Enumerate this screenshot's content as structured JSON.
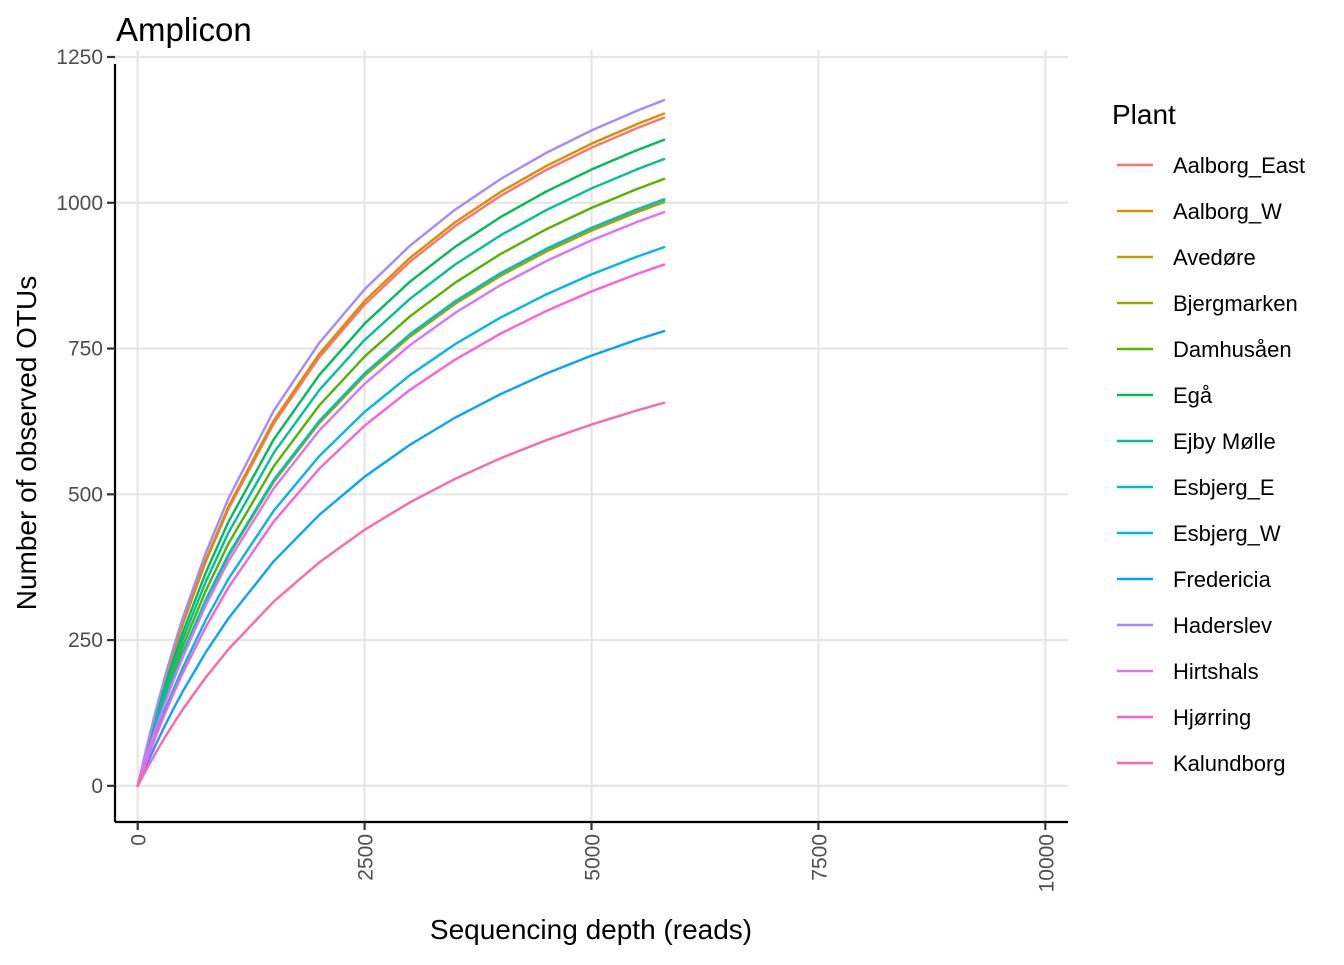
{
  "chart_data": {
    "type": "line",
    "title": "Amplicon",
    "xlabel": "Sequencing depth (reads)",
    "ylabel": "Number of observed OTUs",
    "xlim": [
      -250,
      10250
    ],
    "ylim": [
      -62,
      1262
    ],
    "x_ticks": [
      "0",
      "2500",
      "5000",
      "7500",
      "10000"
    ],
    "y_ticks": [
      "0",
      "250",
      "500",
      "750",
      "1000",
      "1250"
    ],
    "grid": true,
    "legend_title": "Plant",
    "legend_position": "right",
    "x": [
      0,
      100,
      200,
      300,
      400,
      500,
      750,
      1000,
      1500,
      2000,
      2500,
      3000,
      3500,
      4000,
      4500,
      5000,
      5500,
      5800
    ],
    "series": [
      {
        "name": "Aalborg_East",
        "color": "#F8766D",
        "final": 1146
      },
      {
        "name": "Aalborg_W",
        "color": "#E38900",
        "final": 1153
      },
      {
        "name": "Avedøre",
        "color": "#C49A00",
        "final": 1005
      },
      {
        "name": "Bjergmarken",
        "color": "#99A800",
        "final": 1001
      },
      {
        "name": "Damhusåen",
        "color": "#53B400",
        "final": 1041
      },
      {
        "name": "Egå",
        "color": "#00BC56",
        "final": 1108
      },
      {
        "name": "Ejby Mølle",
        "color": "#00C094",
        "final": 1075
      },
      {
        "name": "Esbjerg_E",
        "color": "#00BFC4",
        "final": 1006
      },
      {
        "name": "Esbjerg_W",
        "color": "#00B6EB",
        "final": 924
      },
      {
        "name": "Fredericia",
        "color": "#06A4FF",
        "final": 780
      },
      {
        "name": "Haderslev",
        "color": "#A58AFF",
        "final": 1176
      },
      {
        "name": "Hirtshals",
        "color": "#DF70F8",
        "final": 984
      },
      {
        "name": "Hjørring",
        "color": "#FB61D7",
        "final": 894
      },
      {
        "name": "Kalundborg",
        "color": "#FF66A8",
        "final": 657
      }
    ]
  }
}
